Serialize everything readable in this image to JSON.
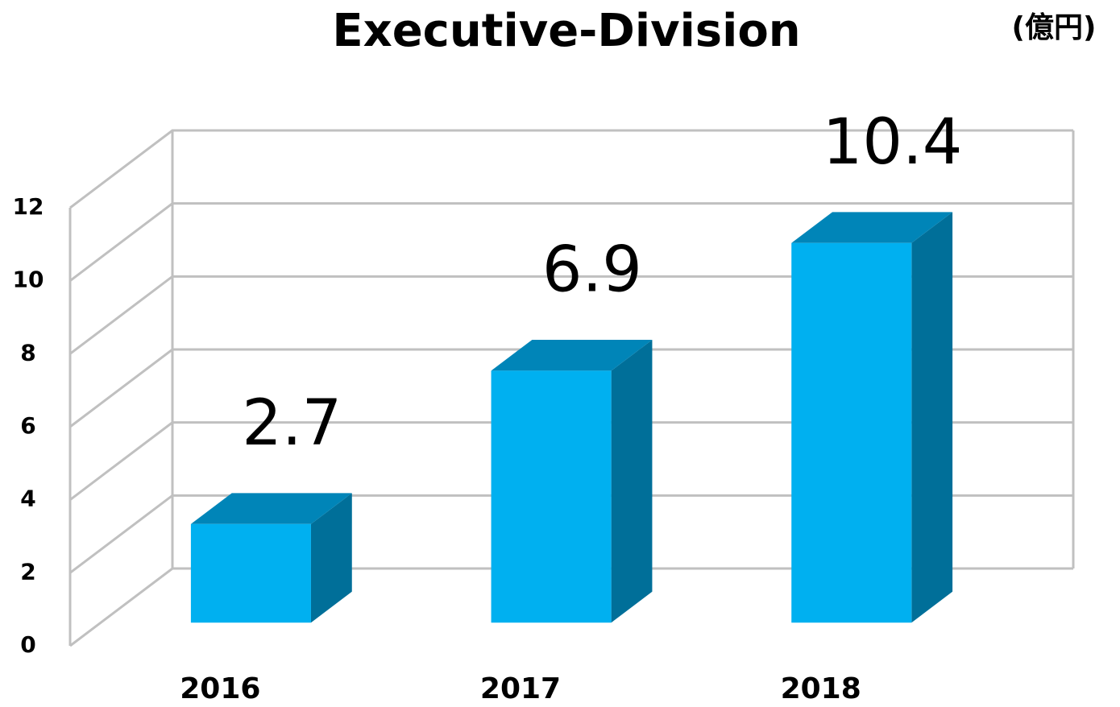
{
  "chart_data": {
    "type": "bar3d",
    "title": "Executive-Division",
    "unit_label": "(億円)",
    "categories": [
      "2016",
      "2017",
      "2018"
    ],
    "values": [
      2.7,
      6.9,
      10.4
    ],
    "color": "#00b0f0",
    "top_color": "#0085b8",
    "side_color": "#006f99",
    "ylim": [
      0,
      12
    ],
    "yticks": [
      0,
      2,
      4,
      6,
      8,
      10,
      12
    ],
    "grid": true
  }
}
